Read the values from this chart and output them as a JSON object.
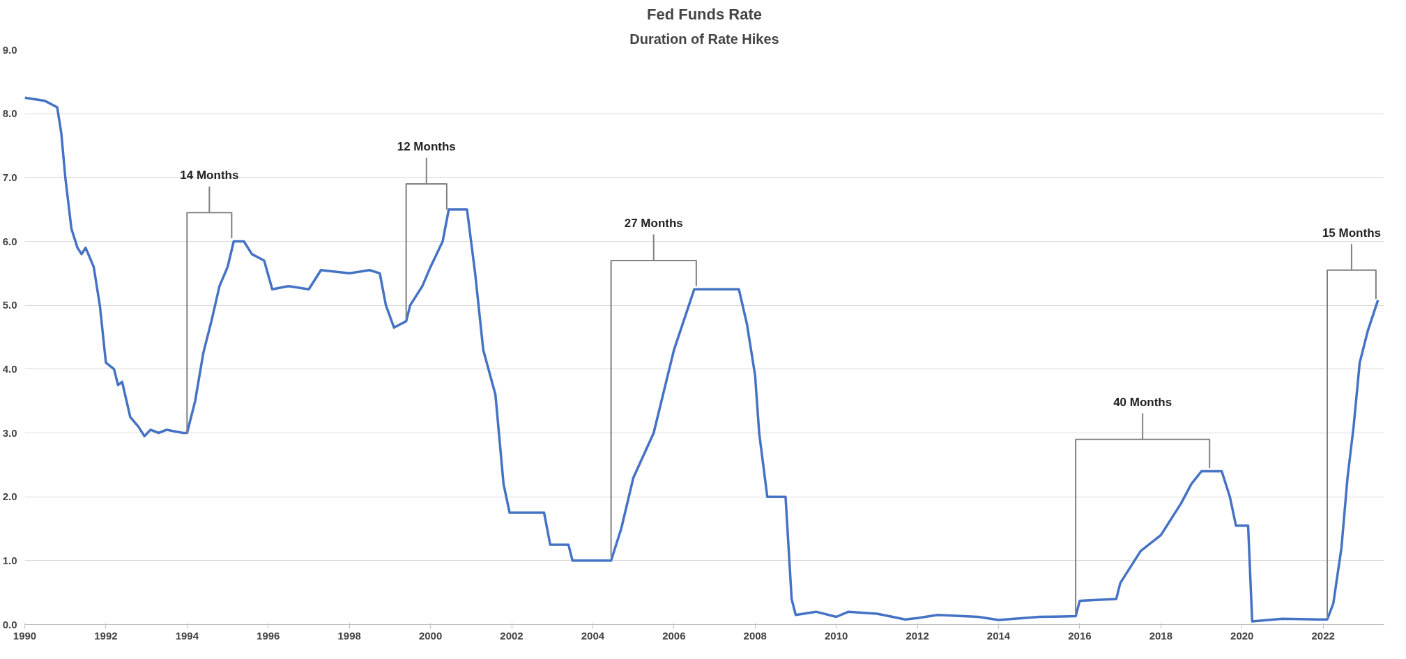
{
  "chart_data": {
    "type": "line",
    "title": "Fed Funds Rate",
    "subtitle": "Duration of Rate Hikes",
    "x": [
      1990.0,
      1990.5,
      1990.8,
      1990.9,
      1991.0,
      1991.15,
      1991.3,
      1991.4,
      1991.5,
      1991.7,
      1991.85,
      1992.0,
      1992.2,
      1992.3,
      1992.4,
      1992.6,
      1992.8,
      1992.95,
      1993.1,
      1993.3,
      1993.5,
      1993.9,
      1994.0,
      1994.2,
      1994.4,
      1994.6,
      1994.8,
      1995.0,
      1995.15,
      1995.4,
      1995.6,
      1995.9,
      1996.1,
      1996.5,
      1997.0,
      1997.3,
      1998.0,
      1998.5,
      1998.75,
      1998.9,
      1999.1,
      1999.4,
      1999.5,
      1999.8,
      2000.0,
      2000.3,
      2000.45,
      2000.9,
      2001.1,
      2001.3,
      2001.6,
      2001.8,
      2001.95,
      2002.8,
      2002.95,
      2003.4,
      2003.5,
      2004.45,
      2004.7,
      2005.0,
      2005.5,
      2006.0,
      2006.5,
      2007.6,
      2007.8,
      2008.0,
      2008.1,
      2008.3,
      2008.75,
      2008.9,
      2009.0,
      2009.5,
      2010.0,
      2010.3,
      2011.0,
      2011.7,
      2012.0,
      2012.5,
      2013.5,
      2014.0,
      2015.0,
      2015.9,
      2016.0,
      2016.9,
      2017.0,
      2017.5,
      2018.0,
      2018.5,
      2018.75,
      2019.0,
      2019.5,
      2019.7,
      2019.85,
      2020.15,
      2020.25,
      2021.0,
      2021.9,
      2022.1,
      2022.25,
      2022.45,
      2022.6,
      2022.75,
      2022.9,
      2023.1,
      2023.35
    ],
    "series": [
      {
        "color": "#4472c4",
        "values": [
          8.25,
          8.2,
          8.1,
          7.7,
          7.0,
          6.2,
          5.9,
          5.8,
          5.9,
          5.6,
          5.0,
          4.1,
          4.0,
          3.75,
          3.8,
          3.25,
          3.1,
          2.95,
          3.05,
          3.0,
          3.05,
          3.0,
          3.0,
          3.5,
          4.25,
          4.75,
          5.3,
          5.6,
          6.0,
          6.0,
          5.8,
          5.7,
          5.25,
          5.3,
          5.25,
          5.55,
          5.5,
          5.55,
          5.5,
          5.0,
          4.65,
          4.75,
          5.0,
          5.3,
          5.6,
          6.0,
          6.5,
          6.5,
          5.5,
          4.3,
          3.6,
          2.2,
          1.75,
          1.75,
          1.25,
          1.25,
          1.0,
          1.0,
          1.5,
          2.3,
          3.0,
          4.3,
          5.25,
          5.25,
          4.7,
          3.9,
          3.0,
          2.0,
          2.0,
          0.4,
          0.15,
          0.2,
          0.12,
          0.2,
          0.17,
          0.08,
          0.1,
          0.15,
          0.12,
          0.07,
          0.12,
          0.13,
          0.37,
          0.4,
          0.65,
          1.15,
          1.4,
          1.9,
          2.2,
          2.4,
          2.4,
          2.0,
          1.55,
          1.55,
          0.05,
          0.09,
          0.08,
          0.08,
          0.33,
          1.2,
          2.3,
          3.1,
          4.1,
          4.6,
          5.08
        ]
      },
      {
        "type": "line",
        "color": "#808080",
        "x": [
          1994.0,
          1994.0,
          1994.55,
          1994.55,
          1994.55,
          1995.1,
          1995.1
        ],
        "values": [
          3.0,
          6.45,
          6.45,
          6.85,
          6.45,
          6.45,
          6.05
        ]
      },
      {
        "type": "line",
        "color": "#808080",
        "x": [
          1999.4,
          1999.4,
          1999.9,
          1999.9,
          1999.9,
          2000.4,
          2000.4
        ],
        "values": [
          4.8,
          6.9,
          6.9,
          7.3,
          6.9,
          6.9,
          6.5
        ]
      },
      {
        "type": "line",
        "color": "#808080",
        "x": [
          2004.45,
          2004.45,
          2005.5,
          2005.5,
          2005.5,
          2006.55,
          2006.55
        ],
        "values": [
          1.05,
          5.7,
          5.7,
          6.1,
          5.7,
          5.7,
          5.3
        ]
      },
      {
        "type": "line",
        "color": "#808080",
        "x": [
          2015.9,
          2015.9,
          2017.55,
          2017.55,
          2017.55,
          2019.2,
          2019.2
        ],
        "values": [
          0.15,
          2.9,
          2.9,
          3.3,
          2.9,
          2.9,
          2.45
        ]
      },
      {
        "type": "line",
        "color": "#808080",
        "x": [
          2022.1,
          2022.1,
          2022.7,
          2022.7,
          2022.7,
          2023.3,
          2023.3
        ],
        "values": [
          0.1,
          5.55,
          5.55,
          5.95,
          5.55,
          5.55,
          5.1
        ]
      }
    ],
    "xlim": [
      1990,
      2023.5
    ],
    "xticks": [
      1990,
      1992,
      1994,
      1996,
      1998,
      2000,
      2002,
      2004,
      2006,
      2008,
      2010,
      2012,
      2014,
      2016,
      2018,
      2020,
      2022
    ],
    "ylim": [
      0,
      9
    ],
    "yticks": [
      {
        "value": 0,
        "label": "0.0"
      },
      {
        "value": 1,
        "label": "1.0"
      },
      {
        "value": 2,
        "label": "2.0"
      },
      {
        "value": 3,
        "label": "3.0"
      },
      {
        "value": 4,
        "label": "4.0"
      },
      {
        "value": 5,
        "label": "5.0"
      },
      {
        "value": 6,
        "label": "6.0"
      },
      {
        "value": 7,
        "label": "7.0"
      },
      {
        "value": 8,
        "label": "8.0"
      },
      {
        "value": 9,
        "label": "9.0"
      }
    ],
    "grid": "y",
    "line_style": "solid",
    "marker": "none",
    "annotations": [
      "14 Months",
      "12 Months",
      "27 Months",
      "40 Months",
      "15 Months"
    ]
  }
}
